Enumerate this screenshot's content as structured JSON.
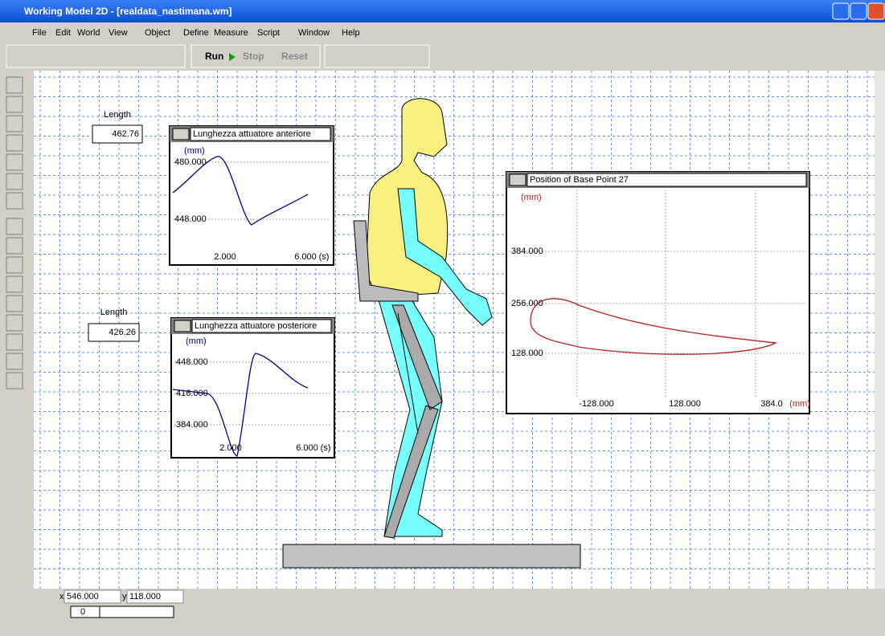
{
  "window": {
    "title": "Working Model 2D - [realdata_nastimana.wm]"
  },
  "menu": [
    "File",
    "Edit",
    "World",
    "View",
    "Object",
    "Define",
    "Measure",
    "Script",
    "Window",
    "Help"
  ],
  "toolbar": {
    "run": "Run",
    "stop": "Stop",
    "reset": "Reset"
  },
  "meters": [
    {
      "label": "Length",
      "value": "462.76"
    },
    {
      "label": "Length",
      "value": "426.26"
    }
  ],
  "graphs": [
    {
      "title": "Lunghezza attuatore anteriore",
      "unit": "(mm)",
      "yticks": [
        "480.000",
        "448.000"
      ],
      "xticks": [
        "2.000",
        "6.000"
      ],
      "xunit": "(s)"
    },
    {
      "title": "Lunghezza attuatore posteriore",
      "unit": "(mm)",
      "yticks": [
        "448.000",
        "416.000",
        "384.000"
      ],
      "xticks": [
        "2.000",
        "6.000"
      ],
      "xunit": "(s)"
    },
    {
      "title": "Position of Base Point 27",
      "unit": "(mm)",
      "yticks": [
        "384.000",
        "256.000",
        "128.000"
      ],
      "xticks": [
        "-128.000",
        "128.000",
        "384.0"
      ],
      "xunit": "(mm)"
    }
  ],
  "status": {
    "x_label": "x",
    "x": "546.000",
    "y_label": "y",
    "y": "118.000",
    "frame": "0"
  }
}
